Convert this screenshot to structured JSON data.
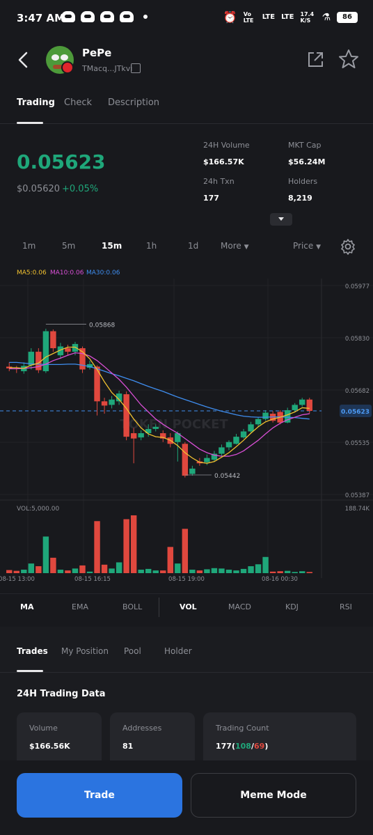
{
  "status": {
    "time": "3:47 AM",
    "vo": "Vo LTE",
    "lte1": "LTE",
    "lte2": "LTE",
    "speed": "17.4 K/S",
    "battery": "86"
  },
  "token": {
    "name": "PePe",
    "address": "TMacq...JTkvi"
  },
  "tabs": [
    "Trading",
    "Check",
    "Description"
  ],
  "price": {
    "main": "0.05623",
    "usd": "$0.05620",
    "change": "+0.05%"
  },
  "stats": {
    "volume_label": "24H Volume",
    "volume": "$166.57K",
    "mktcap_label": "MKT Cap",
    "mktcap": "$56.24M",
    "txn_label": "24h Txn",
    "txn": "177",
    "holders_label": "Holders",
    "holders": "8,219"
  },
  "timeframes": [
    "1m",
    "5m",
    "15m",
    "1h",
    "1d"
  ],
  "more_label": "More",
  "price_toggle": "Price",
  "ma_legend": {
    "ma5": "MA5:0.06",
    "ma10": "MA10:0.06",
    "ma30": "MA30:0.06"
  },
  "colors": {
    "up": "#1fa77a",
    "down": "#e0483e",
    "ma5": "#f2c230",
    "ma10": "#d94fd6",
    "ma30": "#3f8ef0",
    "accent": "#2b74e0"
  },
  "chart_data": {
    "type": "candlestick",
    "y_ticks": [
      "0.05977",
      "0.05830",
      "0.05682",
      "0.05535",
      "0.05387"
    ],
    "ylim": [
      0.05387,
      0.05977
    ],
    "current_price": "0.05623",
    "high_label": "0.05868",
    "low_label": "0.05442",
    "watermark": "TOKEN POCKET",
    "volume_label": "VOL:5,000.00",
    "volume_max": "188.74K",
    "x_ticks": [
      "08-15 13:00",
      "08-15 16:15",
      "08-15 19:00",
      "08-16 00:30"
    ],
    "candles": [
      {
        "o": 0.05748,
        "c": 0.05743,
        "h": 0.0576,
        "l": 0.05735,
        "v": 800
      },
      {
        "o": 0.05743,
        "c": 0.05742,
        "h": 0.0575,
        "l": 0.0573,
        "v": 600
      },
      {
        "o": 0.05735,
        "c": 0.0575,
        "h": 0.0576,
        "l": 0.05728,
        "v": 900
      },
      {
        "o": 0.05752,
        "c": 0.0579,
        "h": 0.058,
        "l": 0.0574,
        "v": 2500
      },
      {
        "o": 0.0579,
        "c": 0.05738,
        "h": 0.058,
        "l": 0.0573,
        "v": 1800
      },
      {
        "o": 0.05735,
        "c": 0.05848,
        "h": 0.05855,
        "l": 0.0573,
        "v": 9500
      },
      {
        "o": 0.05848,
        "c": 0.058,
        "h": 0.05853,
        "l": 0.0579,
        "v": 4000
      },
      {
        "o": 0.0578,
        "c": 0.05805,
        "h": 0.05815,
        "l": 0.0577,
        "v": 900
      },
      {
        "o": 0.058,
        "c": 0.0579,
        "h": 0.0581,
        "l": 0.0578,
        "v": 700
      },
      {
        "o": 0.0579,
        "c": 0.05812,
        "h": 0.05818,
        "l": 0.0578,
        "v": 1200
      },
      {
        "o": 0.058,
        "c": 0.0574,
        "h": 0.05805,
        "l": 0.0573,
        "v": 2000
      },
      {
        "o": 0.05745,
        "c": 0.05755,
        "h": 0.05765,
        "l": 0.0574,
        "v": 400
      },
      {
        "o": 0.05748,
        "c": 0.0565,
        "h": 0.05752,
        "l": 0.0561,
        "v": 13500
      },
      {
        "o": 0.0565,
        "c": 0.05638,
        "h": 0.0566,
        "l": 0.05615,
        "v": 2200
      },
      {
        "o": 0.0564,
        "c": 0.05655,
        "h": 0.05665,
        "l": 0.0563,
        "v": 1200
      },
      {
        "o": 0.0565,
        "c": 0.05672,
        "h": 0.0568,
        "l": 0.0564,
        "v": 2800
      },
      {
        "o": 0.0567,
        "c": 0.0555,
        "h": 0.05678,
        "l": 0.0554,
        "v": 14000
      },
      {
        "o": 0.0556,
        "c": 0.05545,
        "h": 0.05575,
        "l": 0.05475,
        "v": 15000
      },
      {
        "o": 0.05548,
        "c": 0.0556,
        "h": 0.05568,
        "l": 0.0554,
        "v": 900
      },
      {
        "o": 0.0556,
        "c": 0.05572,
        "h": 0.05585,
        "l": 0.0555,
        "v": 1100
      },
      {
        "o": 0.05572,
        "c": 0.05578,
        "h": 0.05585,
        "l": 0.05565,
        "v": 700
      },
      {
        "o": 0.0556,
        "c": 0.05545,
        "h": 0.05568,
        "l": 0.05535,
        "v": 700
      },
      {
        "o": 0.05548,
        "c": 0.0553,
        "h": 0.0556,
        "l": 0.0552,
        "v": 6800
      },
      {
        "o": 0.05535,
        "c": 0.0556,
        "h": 0.05565,
        "l": 0.0548,
        "v": 2500
      },
      {
        "o": 0.0553,
        "c": 0.0544,
        "h": 0.05535,
        "l": 0.05435,
        "v": 11500
      },
      {
        "o": 0.05445,
        "c": 0.0546,
        "h": 0.05468,
        "l": 0.0544,
        "v": 900
      },
      {
        "o": 0.0548,
        "c": 0.05475,
        "h": 0.0549,
        "l": 0.05468,
        "v": 700
      },
      {
        "o": 0.05478,
        "c": 0.0549,
        "h": 0.055,
        "l": 0.0547,
        "v": 1000
      },
      {
        "o": 0.05485,
        "c": 0.05502,
        "h": 0.0551,
        "l": 0.0548,
        "v": 1300
      },
      {
        "o": 0.05502,
        "c": 0.0552,
        "h": 0.05528,
        "l": 0.05495,
        "v": 1200
      },
      {
        "o": 0.0552,
        "c": 0.05535,
        "h": 0.0554,
        "l": 0.05512,
        "v": 900
      },
      {
        "o": 0.0553,
        "c": 0.0555,
        "h": 0.05558,
        "l": 0.05528,
        "v": 700
      },
      {
        "o": 0.05548,
        "c": 0.05565,
        "h": 0.05572,
        "l": 0.05545,
        "v": 1100
      },
      {
        "o": 0.05565,
        "c": 0.05585,
        "h": 0.05592,
        "l": 0.0556,
        "v": 1800
      },
      {
        "o": 0.05585,
        "c": 0.056,
        "h": 0.05605,
        "l": 0.05578,
        "v": 2300
      },
      {
        "o": 0.056,
        "c": 0.05618,
        "h": 0.05625,
        "l": 0.05595,
        "v": 4200
      },
      {
        "o": 0.05615,
        "c": 0.05595,
        "h": 0.05622,
        "l": 0.0559,
        "v": 400
      },
      {
        "o": 0.0562,
        "c": 0.0559,
        "h": 0.05625,
        "l": 0.05585,
        "v": 500
      },
      {
        "o": 0.0559,
        "c": 0.05625,
        "h": 0.05632,
        "l": 0.05588,
        "v": 600
      },
      {
        "o": 0.05625,
        "c": 0.0564,
        "h": 0.05645,
        "l": 0.0562,
        "v": 300
      },
      {
        "o": 0.0564,
        "c": 0.05655,
        "h": 0.0566,
        "l": 0.05635,
        "v": 500
      },
      {
        "o": 0.05655,
        "c": 0.05623,
        "h": 0.0566,
        "l": 0.05615,
        "v": 300
      }
    ],
    "ma5": [
      0.05745,
      0.05745,
      0.05743,
      0.05752,
      0.05758,
      0.05775,
      0.05785,
      0.05795,
      0.05803,
      0.05803,
      0.0579,
      0.0577,
      0.0574,
      0.05705,
      0.05675,
      0.05655,
      0.0563,
      0.056,
      0.05575,
      0.05558,
      0.0555,
      0.05548,
      0.0554,
      0.05525,
      0.05505,
      0.0549,
      0.05478,
      0.05475,
      0.0548,
      0.05492,
      0.05505,
      0.05522,
      0.0554,
      0.0556,
      0.05578,
      0.05592,
      0.056,
      0.05605,
      0.05612,
      0.0562,
      0.05632,
      0.0563
    ],
    "ma10": [
      0.05742,
      0.05742,
      0.05743,
      0.05745,
      0.05748,
      0.05755,
      0.05765,
      0.05772,
      0.0578,
      0.05787,
      0.05785,
      0.05778,
      0.05765,
      0.05748,
      0.0573,
      0.05712,
      0.0569,
      0.05665,
      0.0564,
      0.0562,
      0.056,
      0.05585,
      0.05572,
      0.0556,
      0.05545,
      0.0553,
      0.05515,
      0.05505,
      0.05498,
      0.05495,
      0.05495,
      0.055,
      0.0551,
      0.05525,
      0.0554,
      0.05558,
      0.05575,
      0.05588,
      0.05598,
      0.05605,
      0.05612,
      0.05615
    ],
    "ma30": [
      0.0576,
      0.0576,
      0.05758,
      0.05756,
      0.05755,
      0.05754,
      0.05754,
      0.05754,
      0.05755,
      0.05755,
      0.05752,
      0.05748,
      0.05742,
      0.05735,
      0.05728,
      0.05722,
      0.05715,
      0.05708,
      0.057,
      0.05692,
      0.05685,
      0.05678,
      0.0567,
      0.05662,
      0.05655,
      0.05648,
      0.05641,
      0.05634,
      0.05628,
      0.05622,
      0.05617,
      0.05612,
      0.05608,
      0.05606,
      0.05605,
      0.05605,
      0.05606,
      0.05606,
      0.05605,
      0.05604,
      0.05602,
      0.056
    ]
  },
  "indicators": [
    "MA",
    "EMA",
    "BOLL",
    "VOL",
    "MACD",
    "KDJ",
    "RSI"
  ],
  "lower_tabs": [
    "Trades",
    "My Position",
    "Pool",
    "Holder"
  ],
  "section_title": "24H Trading Data",
  "cards": {
    "volume_label": "Volume",
    "volume": "$166.56K",
    "addresses_label": "Addresses",
    "addresses": "81",
    "count_label": "Trading Count",
    "count_total": "177",
    "count_buy": "108",
    "count_sell": "69"
  },
  "buttons": {
    "trade": "Trade",
    "meme": "Meme Mode"
  }
}
